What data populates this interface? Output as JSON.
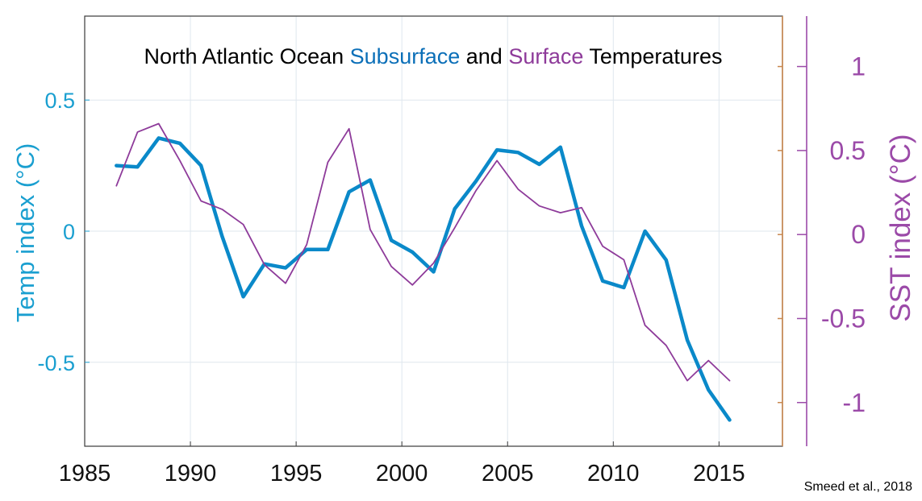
{
  "chart_data": {
    "type": "line",
    "title_parts": [
      {
        "text": "North Atlantic Ocean",
        "color": "#000000"
      },
      {
        "text": "Subsurface",
        "color": "#0b6fb8"
      },
      {
        "text": "and",
        "color": "#000000"
      },
      {
        "text": "Surface",
        "color": "#8e3b9a"
      },
      {
        "text": "Temperatures",
        "color": "#000000"
      }
    ],
    "ylabel_left": "Temp index (°C)",
    "ylabel_right": "SST index (°C)",
    "xlim": [
      1985,
      2018
    ],
    "ylim_left": [
      -0.82,
      0.82
    ],
    "ylim_right": [
      -1.26,
      1.3
    ],
    "xticks": [
      1985,
      1990,
      1995,
      2000,
      2005,
      2010,
      2015
    ],
    "xtick_labels": [
      "1985",
      "1990",
      "1995",
      "2000",
      "2005",
      "2010",
      "2015"
    ],
    "yticks_left": [
      -0.5,
      0,
      0.5
    ],
    "ytick_labels_left": [
      "-0.5",
      "0",
      "0.5"
    ],
    "yticks_right": [
      -1,
      -0.5,
      0,
      0.5,
      1
    ],
    "ytick_labels_right": [
      "-1",
      "-0.5",
      "0",
      "0.5",
      "1"
    ],
    "grid": true,
    "source": "Smeed et al., 2018",
    "colors": {
      "subsurface": "#0a89c9",
      "surface": "#8e3b9a",
      "left_axis": "#1a9fd0",
      "right_axis": "#9b4aa8",
      "right_spine": "#c8874e",
      "grid": "#dfe7ee"
    },
    "series": [
      {
        "key": "subsurface",
        "axis": "left",
        "x": [
          1986.5,
          1987.5,
          1988.5,
          1989.5,
          1990.5,
          1991.5,
          1992.5,
          1993.5,
          1994.5,
          1995.5,
          1996.5,
          1997.5,
          1998.5,
          1999.5,
          2000.5,
          2001.5,
          2002.5,
          2003.5,
          2004.5,
          2005.5,
          2006.5,
          2007.5,
          2008.5,
          2009.5,
          2010.5,
          2011.5,
          2012.5,
          2013.5,
          2014.5,
          2015.5
        ],
        "values": [
          0.25,
          0.245,
          0.355,
          0.335,
          0.25,
          -0.02,
          -0.25,
          -0.125,
          -0.14,
          -0.07,
          -0.07,
          0.15,
          0.195,
          -0.035,
          -0.08,
          -0.155,
          0.085,
          0.19,
          0.31,
          0.3,
          0.255,
          0.32,
          0.02,
          -0.19,
          -0.215,
          0.0,
          -0.11,
          -0.415,
          -0.605,
          -0.72
        ]
      },
      {
        "key": "surface",
        "axis": "right",
        "x": [
          1986.5,
          1987.5,
          1988.5,
          1989.5,
          1990.5,
          1991.5,
          1992.5,
          1993.5,
          1994.5,
          1995.5,
          1996.5,
          1997.5,
          1998.5,
          1999.5,
          2000.5,
          2001.5,
          2002.5,
          2003.5,
          2004.5,
          2005.5,
          2006.5,
          2007.5,
          2008.5,
          2009.5,
          2010.5,
          2011.5,
          2012.5,
          2013.5,
          2014.5,
          2015.5
        ],
        "values": [
          0.29,
          0.61,
          0.66,
          0.44,
          0.2,
          0.15,
          0.06,
          -0.18,
          -0.29,
          -0.06,
          0.43,
          0.63,
          0.03,
          -0.19,
          -0.3,
          -0.17,
          0.04,
          0.26,
          0.44,
          0.27,
          0.17,
          0.13,
          0.16,
          -0.07,
          -0.15,
          -0.54,
          -0.66,
          -0.87,
          -0.75,
          -0.87
        ]
      }
    ]
  }
}
